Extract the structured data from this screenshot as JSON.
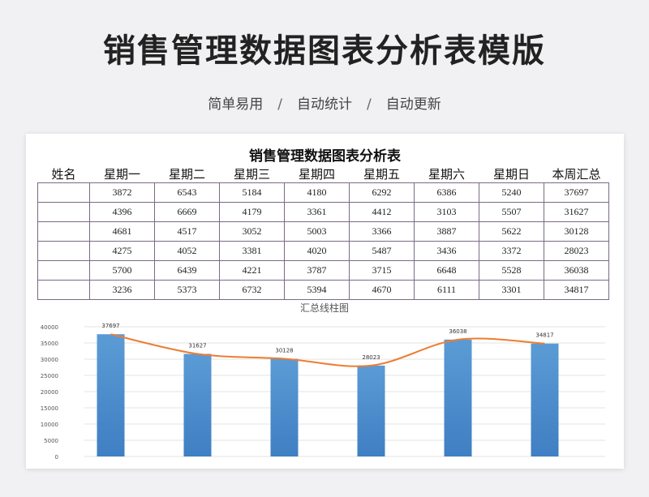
{
  "header": {
    "title": "销售管理数据图表分析表模版",
    "features": [
      "简单易用",
      "自动统计",
      "自动更新"
    ],
    "separator": "/"
  },
  "sheet": {
    "title": "销售管理数据图表分析表",
    "columns": [
      "姓名",
      "星期一",
      "星期二",
      "星期三",
      "星期四",
      "星期五",
      "星期六",
      "星期日",
      "本周汇总"
    ],
    "rows": [
      [
        "",
        "3872",
        "6543",
        "5184",
        "4180",
        "6292",
        "6386",
        "5240",
        "37697"
      ],
      [
        "",
        "4396",
        "6669",
        "4179",
        "3361",
        "4412",
        "3103",
        "5507",
        "31627"
      ],
      [
        "",
        "4681",
        "4517",
        "3052",
        "5003",
        "3366",
        "3887",
        "5622",
        "30128"
      ],
      [
        "",
        "4275",
        "4052",
        "3381",
        "4020",
        "5487",
        "3436",
        "3372",
        "28023"
      ],
      [
        "",
        "5700",
        "6439",
        "4221",
        "3787",
        "3715",
        "6648",
        "5528",
        "36038"
      ],
      [
        "",
        "3236",
        "5373",
        "6732",
        "5394",
        "4670",
        "6111",
        "3301",
        "34817"
      ]
    ]
  },
  "chart_data": {
    "type": "bar",
    "title": "汇总线柱图",
    "categories": [
      "",
      "",
      "",
      "",
      "",
      ""
    ],
    "values": [
      37697,
      31627,
      30128,
      28023,
      36038,
      34817
    ],
    "data_labels": [
      "37697",
      "31627",
      "30128",
      "28023",
      "36038",
      "34817"
    ],
    "yticks": [
      "0",
      "5000",
      "10000",
      "15000",
      "20000",
      "25000",
      "30000",
      "35000",
      "40000"
    ],
    "ylim": [
      0,
      40000
    ],
    "grid": true,
    "overlay_line": true,
    "colors": {
      "bar_top": "#5b9bd5",
      "bar_bottom": "#3f7fc3",
      "line": "#ed7d31"
    }
  }
}
